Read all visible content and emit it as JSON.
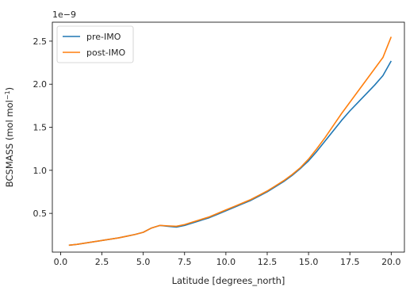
{
  "chart_data": {
    "type": "line",
    "title": "",
    "xlabel": "Latitude [degrees_north]",
    "ylabel": "BCSMASS (mol mol",
    "ylabel_sup": "−1",
    "ylabel_close": ")",
    "offset_text": "1e−9",
    "xlim": [
      -0.5,
      20.8
    ],
    "ylim": [
      0.05,
      2.72
    ],
    "xticks": [
      0.0,
      2.5,
      5.0,
      7.5,
      10.0,
      12.5,
      15.0,
      17.5,
      20.0
    ],
    "xtick_labels": [
      "0.0",
      "2.5",
      "5.0",
      "7.5",
      "10.0",
      "12.5",
      "15.0",
      "17.5",
      "20.0"
    ],
    "yticks": [
      0.5,
      1.0,
      1.5,
      2.0,
      2.5
    ],
    "ytick_labels": [
      "0.5",
      "1.0",
      "1.5",
      "2.0",
      "2.5"
    ],
    "grid": false,
    "legend_position": "top-left",
    "x": [
      0.5,
      1.0,
      1.5,
      2.0,
      2.5,
      3.0,
      3.5,
      4.0,
      4.5,
      5.0,
      5.5,
      6.0,
      6.5,
      7.0,
      7.5,
      8.0,
      8.5,
      9.0,
      9.5,
      10.0,
      10.5,
      11.0,
      11.5,
      12.0,
      12.5,
      13.0,
      13.5,
      14.0,
      14.5,
      15.0,
      15.5,
      16.0,
      16.5,
      17.0,
      17.5,
      18.0,
      18.5,
      19.0,
      19.5,
      20.0
    ],
    "series": [
      {
        "name": "pre-IMO",
        "color": "#1f77b4",
        "values": [
          0.13,
          0.14,
          0.155,
          0.17,
          0.185,
          0.2,
          0.215,
          0.235,
          0.255,
          0.28,
          0.33,
          0.36,
          0.35,
          0.34,
          0.36,
          0.39,
          0.42,
          0.45,
          0.49,
          0.53,
          0.57,
          0.61,
          0.65,
          0.7,
          0.75,
          0.81,
          0.87,
          0.94,
          1.02,
          1.11,
          1.22,
          1.34,
          1.46,
          1.58,
          1.69,
          1.79,
          1.89,
          1.99,
          2.1,
          2.27
        ]
      },
      {
        "name": "post-IMO",
        "color": "#ff7f0e",
        "values": [
          0.13,
          0.14,
          0.155,
          0.17,
          0.185,
          0.2,
          0.215,
          0.235,
          0.255,
          0.28,
          0.33,
          0.36,
          0.355,
          0.35,
          0.37,
          0.4,
          0.43,
          0.46,
          0.5,
          0.54,
          0.58,
          0.62,
          0.66,
          0.71,
          0.76,
          0.82,
          0.88,
          0.95,
          1.03,
          1.13,
          1.25,
          1.38,
          1.52,
          1.66,
          1.79,
          1.92,
          2.05,
          2.18,
          2.31,
          2.55
        ]
      }
    ]
  }
}
